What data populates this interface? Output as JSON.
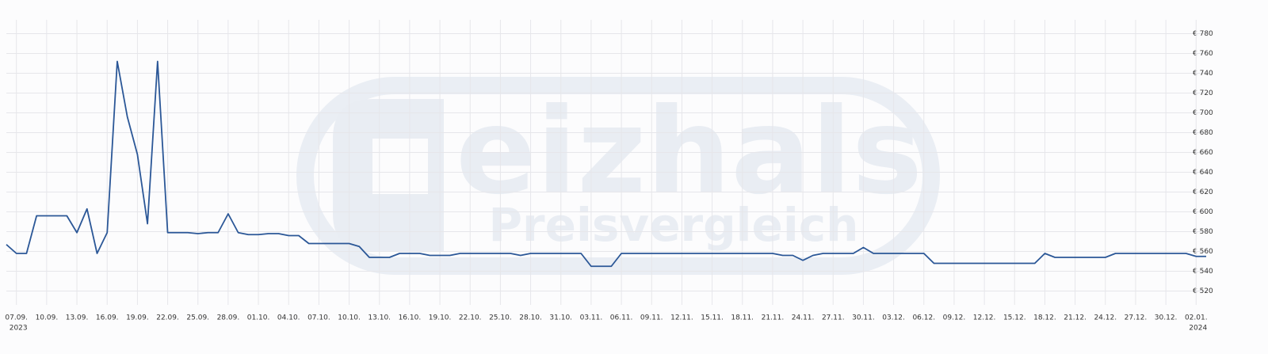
{
  "chart_data": {
    "type": "line",
    "watermark_text": "eizhals",
    "watermark_subtext": "Preisvergleich",
    "x": [
      "2023-09-06",
      "2023-09-07",
      "2023-09-08",
      "2023-09-09",
      "2023-09-10",
      "2023-09-11",
      "2023-09-12",
      "2023-09-13",
      "2023-09-14",
      "2023-09-15",
      "2023-09-16",
      "2023-09-17",
      "2023-09-18",
      "2023-09-19",
      "2023-09-20",
      "2023-09-21",
      "2023-09-22",
      "2023-09-23",
      "2023-09-24",
      "2023-09-25",
      "2023-09-26",
      "2023-09-27",
      "2023-09-28",
      "2023-09-29",
      "2023-09-30",
      "2023-10-01",
      "2023-10-02",
      "2023-10-03",
      "2023-10-04",
      "2023-10-05",
      "2023-10-06",
      "2023-10-07",
      "2023-10-08",
      "2023-10-09",
      "2023-10-10",
      "2023-10-11",
      "2023-10-12",
      "2023-10-13",
      "2023-10-14",
      "2023-10-15",
      "2023-10-16",
      "2023-10-17",
      "2023-10-18",
      "2023-10-19",
      "2023-10-20",
      "2023-10-21",
      "2023-10-22",
      "2023-10-23",
      "2023-10-24",
      "2023-10-25",
      "2023-10-26",
      "2023-10-27",
      "2023-10-28",
      "2023-10-29",
      "2023-10-30",
      "2023-10-31",
      "2023-11-01",
      "2023-11-02",
      "2023-11-03",
      "2023-11-04",
      "2023-11-05",
      "2023-11-06",
      "2023-11-07",
      "2023-11-08",
      "2023-11-09",
      "2023-11-10",
      "2023-11-11",
      "2023-11-12",
      "2023-11-13",
      "2023-11-14",
      "2023-11-15",
      "2023-11-16",
      "2023-11-17",
      "2023-11-18",
      "2023-11-19",
      "2023-11-20",
      "2023-11-21",
      "2023-11-22",
      "2023-11-23",
      "2023-11-24",
      "2023-11-25",
      "2023-11-26",
      "2023-11-27",
      "2023-11-28",
      "2023-11-29",
      "2023-11-30",
      "2023-12-01",
      "2023-12-02",
      "2023-12-03",
      "2023-12-04",
      "2023-12-05",
      "2023-12-06",
      "2023-12-07",
      "2023-12-08",
      "2023-12-09",
      "2023-12-10",
      "2023-12-11",
      "2023-12-12",
      "2023-12-13",
      "2023-12-14",
      "2023-12-15",
      "2023-12-16",
      "2023-12-17",
      "2023-12-18",
      "2023-12-19",
      "2023-12-20",
      "2023-12-21",
      "2023-12-22",
      "2023-12-23",
      "2023-12-24",
      "2023-12-25",
      "2023-12-26",
      "2023-12-27",
      "2023-12-28",
      "2023-12-29",
      "2023-12-30",
      "2023-12-31",
      "2024-01-01",
      "2024-01-02",
      "2024-01-03"
    ],
    "series": [
      {
        "color": "#2b5797",
        "values": [
          567,
          558,
          558,
          596,
          596,
          596,
          596,
          579,
          603,
          558,
          579,
          752,
          696,
          658,
          588,
          752,
          579,
          579,
          579,
          578,
          579,
          579,
          598,
          579,
          577,
          577,
          578,
          578,
          576,
          576,
          568,
          568,
          568,
          568,
          568,
          565,
          554,
          554,
          554,
          558,
          558,
          558,
          556,
          556,
          556,
          558,
          558,
          558,
          558,
          558,
          558,
          556,
          558,
          558,
          558,
          558,
          558,
          558,
          545,
          545,
          545,
          558,
          558,
          558,
          558,
          558,
          558,
          558,
          558,
          558,
          558,
          558,
          558,
          558,
          558,
          558,
          558,
          556,
          556,
          551,
          556,
          558,
          558,
          558,
          558,
          564,
          558,
          558,
          558,
          558,
          558,
          558,
          548,
          548,
          548,
          548,
          548,
          548,
          548,
          548,
          548,
          548,
          548,
          558,
          554,
          554,
          554,
          554,
          554,
          554,
          558,
          558,
          558,
          558,
          558,
          558,
          558,
          558,
          555,
          555
        ]
      }
    ],
    "xlim": [
      "2023-09-06",
      "2024-01-03"
    ],
    "xticks": [
      {
        "value": "2023-09-07",
        "label": "07.09.",
        "year": "2023"
      },
      {
        "value": "2023-09-10",
        "label": "10.09."
      },
      {
        "value": "2023-09-13",
        "label": "13.09."
      },
      {
        "value": "2023-09-16",
        "label": "16.09."
      },
      {
        "value": "2023-09-19",
        "label": "19.09."
      },
      {
        "value": "2023-09-22",
        "label": "22.09."
      },
      {
        "value": "2023-09-25",
        "label": "25.09."
      },
      {
        "value": "2023-09-28",
        "label": "28.09."
      },
      {
        "value": "2023-10-01",
        "label": "01.10."
      },
      {
        "value": "2023-10-04",
        "label": "04.10."
      },
      {
        "value": "2023-10-07",
        "label": "07.10."
      },
      {
        "value": "2023-10-10",
        "label": "10.10."
      },
      {
        "value": "2023-10-13",
        "label": "13.10."
      },
      {
        "value": "2023-10-16",
        "label": "16.10."
      },
      {
        "value": "2023-10-19",
        "label": "19.10."
      },
      {
        "value": "2023-10-22",
        "label": "22.10."
      },
      {
        "value": "2023-10-25",
        "label": "25.10."
      },
      {
        "value": "2023-10-28",
        "label": "28.10."
      },
      {
        "value": "2023-10-31",
        "label": "31.10."
      },
      {
        "value": "2023-11-03",
        "label": "03.11."
      },
      {
        "value": "2023-11-06",
        "label": "06.11."
      },
      {
        "value": "2023-11-09",
        "label": "09.11."
      },
      {
        "value": "2023-11-12",
        "label": "12.11."
      },
      {
        "value": "2023-11-15",
        "label": "15.11."
      },
      {
        "value": "2023-11-18",
        "label": "18.11."
      },
      {
        "value": "2023-11-21",
        "label": "21.11."
      },
      {
        "value": "2023-11-24",
        "label": "24.11."
      },
      {
        "value": "2023-11-27",
        "label": "27.11."
      },
      {
        "value": "2023-11-30",
        "label": "30.11."
      },
      {
        "value": "2023-12-03",
        "label": "03.12."
      },
      {
        "value": "2023-12-06",
        "label": "06.12."
      },
      {
        "value": "2023-12-09",
        "label": "09.12."
      },
      {
        "value": "2023-12-12",
        "label": "12.12."
      },
      {
        "value": "2023-12-15",
        "label": "15.12."
      },
      {
        "value": "2023-12-18",
        "label": "18.12."
      },
      {
        "value": "2023-12-21",
        "label": "21.12."
      },
      {
        "value": "2023-12-24",
        "label": "24.12."
      },
      {
        "value": "2023-12-27",
        "label": "27.12."
      },
      {
        "value": "2023-12-30",
        "label": "30.12."
      },
      {
        "value": "2024-01-02",
        "label": "02.01.",
        "year": "2024"
      }
    ],
    "ylim": [
      506,
      794
    ],
    "yticks": [
      {
        "value": 520,
        "label": "€ 520"
      },
      {
        "value": 540,
        "label": "€ 540"
      },
      {
        "value": 560,
        "label": "€ 560"
      },
      {
        "value": 580,
        "label": "€ 580"
      },
      {
        "value": 600,
        "label": "€ 600"
      },
      {
        "value": 620,
        "label": "€ 620"
      },
      {
        "value": 640,
        "label": "€ 640"
      },
      {
        "value": 660,
        "label": "€ 660"
      },
      {
        "value": 680,
        "label": "€ 680"
      },
      {
        "value": 700,
        "label": "€ 700"
      },
      {
        "value": 720,
        "label": "€ 720"
      },
      {
        "value": 740,
        "label": "€ 740"
      },
      {
        "value": 760,
        "label": "€ 760"
      },
      {
        "value": 780,
        "label": "€ 780"
      }
    ],
    "grid": true
  }
}
